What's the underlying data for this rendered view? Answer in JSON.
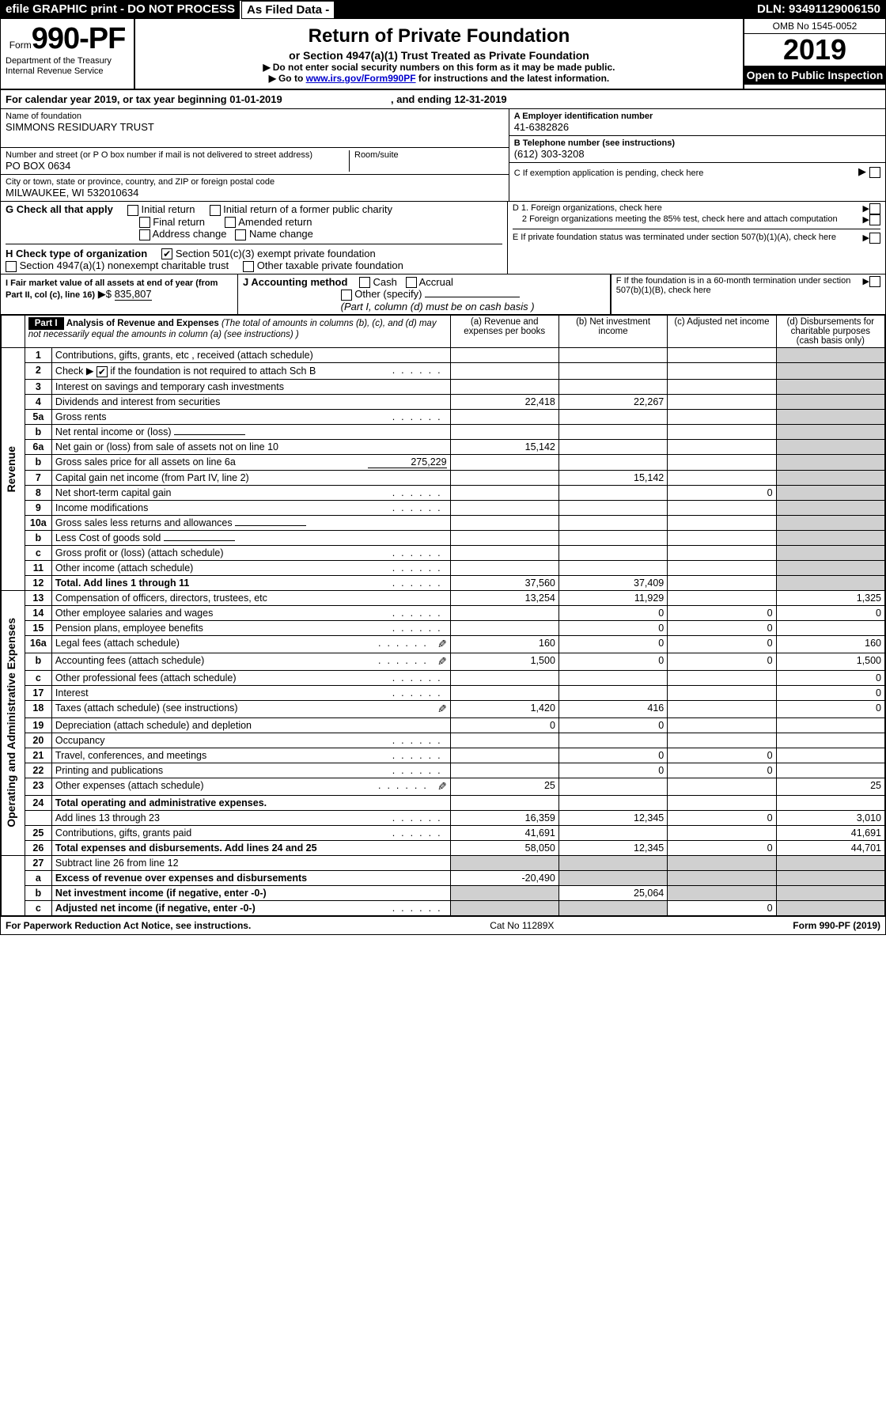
{
  "topbar": {
    "efile": "efile GRAPHIC print - DO NOT PROCESS",
    "asfiled": "As Filed Data -",
    "dln_label": "DLN:",
    "dln": "93491129006150"
  },
  "header": {
    "form_prefix": "Form",
    "form_no": "990-PF",
    "dept1": "Department of the Treasury",
    "dept2": "Internal Revenue Service",
    "title": "Return of Private Foundation",
    "sub": "or Section 4947(a)(1) Trust Treated as Private Foundation",
    "note1": "Do not enter social security numbers on this form as it may be made public.",
    "note2_pre": "Go to ",
    "note2_link": "www.irs.gov/Form990PF",
    "note2_post": " for instructions and the latest information.",
    "omb": "OMB No 1545-0052",
    "year": "2019",
    "open": "Open to Public Inspection"
  },
  "calyear": {
    "pre": "For calendar year 2019, or tax year beginning ",
    "begin": "01-01-2019",
    "mid": ", and ending ",
    "end": "12-31-2019"
  },
  "ident": {
    "name_label": "Name of foundation",
    "name": "SIMMONS RESIDUARY TRUST",
    "addr_label": "Number and street (or P O  box number if mail is not delivered to street address)",
    "addr": "PO BOX 0634",
    "room_label": "Room/suite",
    "city_label": "City or town, state or province, country, and ZIP or foreign postal code",
    "city": "MILWAUKEE, WI  532010634",
    "A_label": "A Employer identification number",
    "A_val": "41-6382826",
    "B_label": "B Telephone number (see instructions)",
    "B_val": "(612) 303-3208",
    "C_label": "C If exemption application is pending, check here",
    "D1": "D 1. Foreign organizations, check here",
    "D2": "2  Foreign organizations meeting the 85% test, check here and attach computation",
    "E": "E  If private foundation status was terminated under section 507(b)(1)(A), check here",
    "F": "F  If the foundation is in a 60-month termination under section 507(b)(1)(B), check here"
  },
  "G": {
    "label": "G Check all that apply",
    "opts": [
      "Initial return",
      "Initial return of a former public charity",
      "Final return",
      "Amended return",
      "Address change",
      "Name change"
    ]
  },
  "H": {
    "label": "H Check type of organization",
    "opt1": "Section 501(c)(3) exempt private foundation",
    "opt2": "Section 4947(a)(1) nonexempt charitable trust",
    "opt3": "Other taxable private foundation"
  },
  "I": {
    "label": "I Fair market value of all assets at end of year (from Part II, col  (c), line 16)",
    "val_prefix": "▶$ ",
    "val": "835,807"
  },
  "J": {
    "label": "J Accounting method",
    "cash": "Cash",
    "accrual": "Accrual",
    "other": "Other (specify)",
    "note": "(Part I, column (d) must be on cash basis )"
  },
  "part1": {
    "label": "Part I",
    "title": "Analysis of Revenue and Expenses",
    "title_note": "(The total of amounts in columns (b), (c), and (d) may not necessarily equal the amounts in column (a) (see instructions) )",
    "cols": {
      "a": "(a) Revenue and expenses per books",
      "b": "(b) Net investment income",
      "c": "(c) Adjusted net income",
      "d": "(d) Disbursements for charitable purposes (cash basis only)"
    }
  },
  "side": {
    "revenue": "Revenue",
    "expenses": "Operating and Administrative Expenses"
  },
  "rows": [
    {
      "n": "1",
      "d": "Contributions, gifts, grants, etc , received (attach schedule)"
    },
    {
      "n": "2",
      "d_pre": "Check ▶ ",
      "d_post": " if the foundation is not required to attach Sch  B",
      "dots": true,
      "chk": true
    },
    {
      "n": "3",
      "d": "Interest on savings and temporary cash investments"
    },
    {
      "n": "4",
      "d": "Dividends and interest from securities",
      "a": "22,418",
      "b": "22,267"
    },
    {
      "n": "5a",
      "d": "Gross rents",
      "dots": true
    },
    {
      "n": "b",
      "d": "Net rental income or (loss)",
      "underline": true
    },
    {
      "n": "6a",
      "d": "Net gain or (loss) from sale of assets not on line 10",
      "a": "15,142"
    },
    {
      "n": "b",
      "d_pre": "Gross sales price for all assets on line 6a",
      "inline_val": "275,229"
    },
    {
      "n": "7",
      "d": "Capital gain net income (from Part IV, line 2)",
      "b": "15,142"
    },
    {
      "n": "8",
      "d": "Net short-term capital gain",
      "dots": true,
      "c": "0"
    },
    {
      "n": "9",
      "d": "Income modifications",
      "dots": true
    },
    {
      "n": "10a",
      "d": "Gross sales less returns and allowances",
      "underline": true
    },
    {
      "n": "b",
      "d": "Less  Cost of goods sold",
      "underline": true
    },
    {
      "n": "c",
      "d": "Gross profit or (loss) (attach schedule)",
      "dots": true
    },
    {
      "n": "11",
      "d": "Other income (attach schedule)",
      "dots": true
    },
    {
      "n": "12",
      "d": "Total. Add lines 1 through 11",
      "bold": true,
      "dots": true,
      "a": "37,560",
      "b": "37,409"
    }
  ],
  "exp_rows": [
    {
      "n": "13",
      "d": "Compensation of officers, directors, trustees, etc",
      "a": "13,254",
      "b": "11,929",
      "dd": "1,325"
    },
    {
      "n": "14",
      "d": "Other employee salaries and wages",
      "dots": true,
      "b": "0",
      "c": "0",
      "dd": "0"
    },
    {
      "n": "15",
      "d": "Pension plans, employee benefits",
      "dots": true,
      "b": "0",
      "c": "0"
    },
    {
      "n": "16a",
      "d": "Legal fees (attach schedule)",
      "dots": true,
      "att": true,
      "a": "160",
      "b": "0",
      "c": "0",
      "dd": "160"
    },
    {
      "n": "b",
      "d": "Accounting fees (attach schedule)",
      "dots": true,
      "att": true,
      "a": "1,500",
      "b": "0",
      "c": "0",
      "dd": "1,500"
    },
    {
      "n": "c",
      "d": "Other professional fees (attach schedule)",
      "dots": true,
      "dd": "0"
    },
    {
      "n": "17",
      "d": "Interest",
      "dots": true,
      "dd": "0"
    },
    {
      "n": "18",
      "d": "Taxes (attach schedule) (see instructions)",
      "att": true,
      "a": "1,420",
      "b": "416",
      "dd": "0"
    },
    {
      "n": "19",
      "d": "Depreciation (attach schedule) and depletion",
      "a": "0",
      "b": "0"
    },
    {
      "n": "20",
      "d": "Occupancy",
      "dots": true
    },
    {
      "n": "21",
      "d": "Travel, conferences, and meetings",
      "dots": true,
      "b": "0",
      "c": "0"
    },
    {
      "n": "22",
      "d": "Printing and publications",
      "dots": true,
      "b": "0",
      "c": "0"
    },
    {
      "n": "23",
      "d": "Other expenses (attach schedule)",
      "dots": true,
      "att": true,
      "a": "25",
      "dd": "25"
    },
    {
      "n": "24",
      "d": "Total operating and administrative expenses.",
      "bold": true
    },
    {
      "n": "",
      "d": "Add lines 13 through 23",
      "dots": true,
      "a": "16,359",
      "b": "12,345",
      "c": "0",
      "dd": "3,010"
    },
    {
      "n": "25",
      "d": "Contributions, gifts, grants paid",
      "dots": true,
      "a": "41,691",
      "dd": "41,691"
    },
    {
      "n": "26",
      "d": "Total expenses and disbursements. Add lines 24 and 25",
      "bold": true,
      "a": "58,050",
      "b": "12,345",
      "c": "0",
      "dd": "44,701"
    }
  ],
  "net_rows": [
    {
      "n": "27",
      "d": "Subtract line 26 from line 12"
    },
    {
      "n": "a",
      "d": "Excess of revenue over expenses and disbursements",
      "bold": true,
      "a": "-20,490"
    },
    {
      "n": "b",
      "d": "Net investment income (if negative, enter -0-)",
      "bold": true,
      "b": "25,064"
    },
    {
      "n": "c",
      "d": "Adjusted net income (if negative, enter -0-)",
      "bold": true,
      "dots": true,
      "c": "0"
    }
  ],
  "footer": {
    "pra": "For Paperwork Reduction Act Notice, see instructions.",
    "cat": "Cat  No  11289X",
    "form": "Form 990-PF (2019)"
  },
  "colors": {
    "black": "#000000",
    "white": "#ffffff",
    "gray": "#d0d0d0",
    "link": "#0000cc"
  }
}
